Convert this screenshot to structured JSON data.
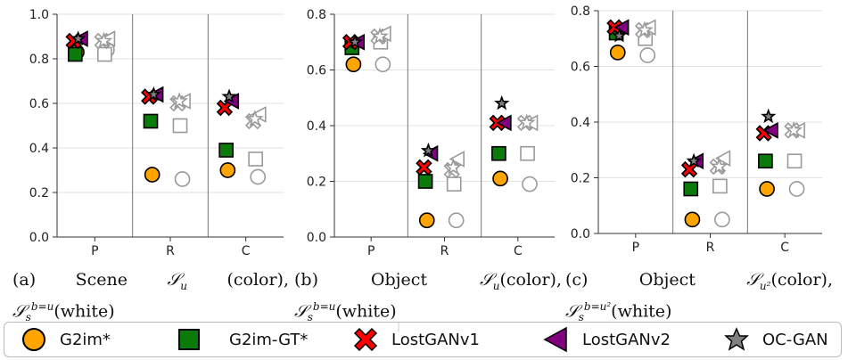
{
  "chart_data": [
    {
      "type": "scatter",
      "categories": [
        "P",
        "R",
        "C"
      ],
      "ylim": [
        0.0,
        1.0
      ],
      "yticks": [
        "0.0",
        "0.2",
        "0.4",
        "0.6",
        "0.8",
        "1.0"
      ],
      "yticks_num": [
        0.0,
        0.2,
        0.4,
        0.6,
        0.8,
        1.0
      ],
      "colored": {
        "G2im*": [
          0.83,
          0.28,
          0.3
        ],
        "G2im-GT*": [
          0.82,
          0.52,
          0.39
        ],
        "LostGANv1": [
          0.88,
          0.63,
          0.58
        ],
        "LostGANv2": [
          0.89,
          0.64,
          0.61
        ],
        "OC-GAN": [
          0.89,
          0.64,
          0.63
        ]
      },
      "white": {
        "G2im*": [
          0.84,
          0.26,
          0.27
        ],
        "G2im-GT*": [
          0.82,
          0.5,
          0.35
        ],
        "LostGANv1": [
          0.88,
          0.6,
          0.52
        ],
        "LostGANv2": [
          0.89,
          0.61,
          0.55
        ],
        "OC-GAN": [
          0.88,
          0.61,
          0.53
        ]
      }
    },
    {
      "type": "scatter",
      "categories": [
        "P",
        "R",
        "C"
      ],
      "ylim": [
        0.0,
        0.8
      ],
      "yticks": [
        "0.0",
        "0.2",
        "0.4",
        "0.6",
        "0.8"
      ],
      "yticks_num": [
        0.0,
        0.2,
        0.4,
        0.6,
        0.8
      ],
      "colored": {
        "G2im*": [
          0.62,
          0.06,
          0.21
        ],
        "G2im-GT*": [
          0.68,
          0.2,
          0.3
        ],
        "LostGANv1": [
          0.7,
          0.25,
          0.41
        ],
        "LostGANv2": [
          0.7,
          0.3,
          0.41
        ],
        "OC-GAN": [
          0.7,
          0.31,
          0.48
        ]
      },
      "white": {
        "G2im*": [
          0.62,
          0.06,
          0.19
        ],
        "G2im-GT*": [
          0.7,
          0.19,
          0.3
        ],
        "LostGANv1": [
          0.72,
          0.24,
          0.41
        ],
        "LostGANv2": [
          0.73,
          0.28,
          0.41
        ],
        "OC-GAN": [
          0.72,
          0.25,
          0.41
        ]
      }
    },
    {
      "type": "scatter",
      "categories": [
        "P",
        "R",
        "C"
      ],
      "ylim": [
        0.0,
        0.8
      ],
      "yticks": [
        "0.0",
        "0.2",
        "0.4",
        "0.6",
        "0.8"
      ],
      "yticks_num": [
        0.0,
        0.2,
        0.4,
        0.6,
        0.8
      ],
      "colored": {
        "G2im*": [
          0.65,
          0.05,
          0.16
        ],
        "G2im-GT*": [
          0.72,
          0.16,
          0.26
        ],
        "LostGANv1": [
          0.74,
          0.23,
          0.36
        ],
        "LostGANv2": [
          0.74,
          0.26,
          0.37
        ],
        "OC-GAN": [
          0.71,
          0.26,
          0.42
        ]
      },
      "white": {
        "G2im*": [
          0.64,
          0.05,
          0.16
        ],
        "G2im-GT*": [
          0.7,
          0.17,
          0.26
        ],
        "LostGANv1": [
          0.73,
          0.24,
          0.37
        ],
        "LostGANv2": [
          0.74,
          0.27,
          0.37
        ],
        "OC-GAN": [
          0.73,
          0.24,
          0.37
        ]
      }
    }
  ],
  "captions": [
    {
      "label": "(a)",
      "word1": "Scene",
      "math": "𝒮",
      "sub": "u",
      "paren": "(color),",
      "math2": "𝒮",
      "sub2": "s",
      "sup2": "b=u",
      "white": "(white)"
    },
    {
      "label": "(b)",
      "word1": "Object",
      "math": "𝒮",
      "sub": "u",
      "paren": "(color),",
      "math2": "𝒮",
      "sub2": "s",
      "sup2": "b=u",
      "white": "(white)"
    },
    {
      "label": "(c)",
      "word1": "Object",
      "math": "𝒮",
      "sub": "u²",
      "paren": "(color),",
      "math2": "𝒮",
      "sub2": "s",
      "sup2": "b=u²",
      "white": "(white)"
    }
  ],
  "legend": [
    {
      "name": "G2im*",
      "marker": "circle",
      "color": "#ffa500"
    },
    {
      "name": "G2im-GT*",
      "marker": "square",
      "color": "#0a7a0a"
    },
    {
      "name": "LostGANv1",
      "marker": "cross",
      "color": "#ff0000"
    },
    {
      "name": "LostGANv2",
      "marker": "triangle",
      "color": "#800080"
    },
    {
      "name": "OC-GAN",
      "marker": "star",
      "color": "#808080"
    }
  ],
  "colors": {
    "G2im*": "#ffa500",
    "G2im-GT*": "#0a7a0a",
    "LostGANv1": "#ff0000",
    "LostGANv2": "#800080",
    "OC-GAN": "#808080",
    "white_edge": "#9a9a9a"
  }
}
